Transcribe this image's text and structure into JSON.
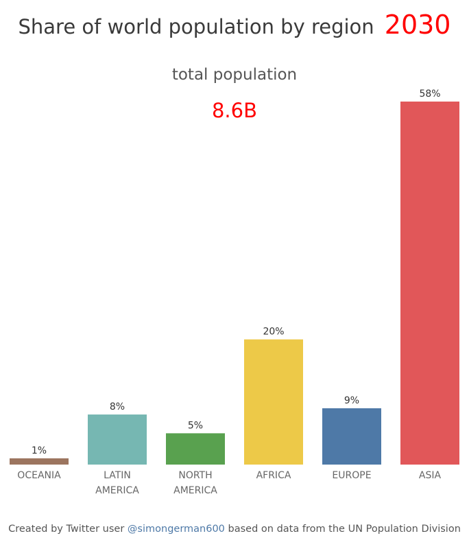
{
  "header": {
    "title": "Share of world population by region",
    "year": "2030",
    "subtitle": "total population",
    "total": "8.6B"
  },
  "footer": {
    "prefix": "Created by Twitter user ",
    "handle": "@simongerman600",
    "suffix": " based on data from the UN Population Division"
  },
  "chart_data": {
    "type": "bar",
    "categories": [
      [
        "OCEANIA"
      ],
      [
        "LATIN",
        "AMERICA"
      ],
      [
        "NORTH",
        "AMERICA"
      ],
      [
        "AFRICA"
      ],
      [
        "EUROPE"
      ],
      [
        "ASIA"
      ]
    ],
    "values": [
      1,
      8,
      5,
      20,
      9,
      58
    ],
    "labels": [
      "1%",
      "8%",
      "5%",
      "20%",
      "9%",
      "58%"
    ],
    "colors": [
      "#9c755f",
      "#76b7b2",
      "#59a14f",
      "#edc948",
      "#4e79a7",
      "#e15759"
    ],
    "ylabel": "",
    "xlabel": "",
    "ylim": [
      0,
      58
    ],
    "grid": false
  }
}
